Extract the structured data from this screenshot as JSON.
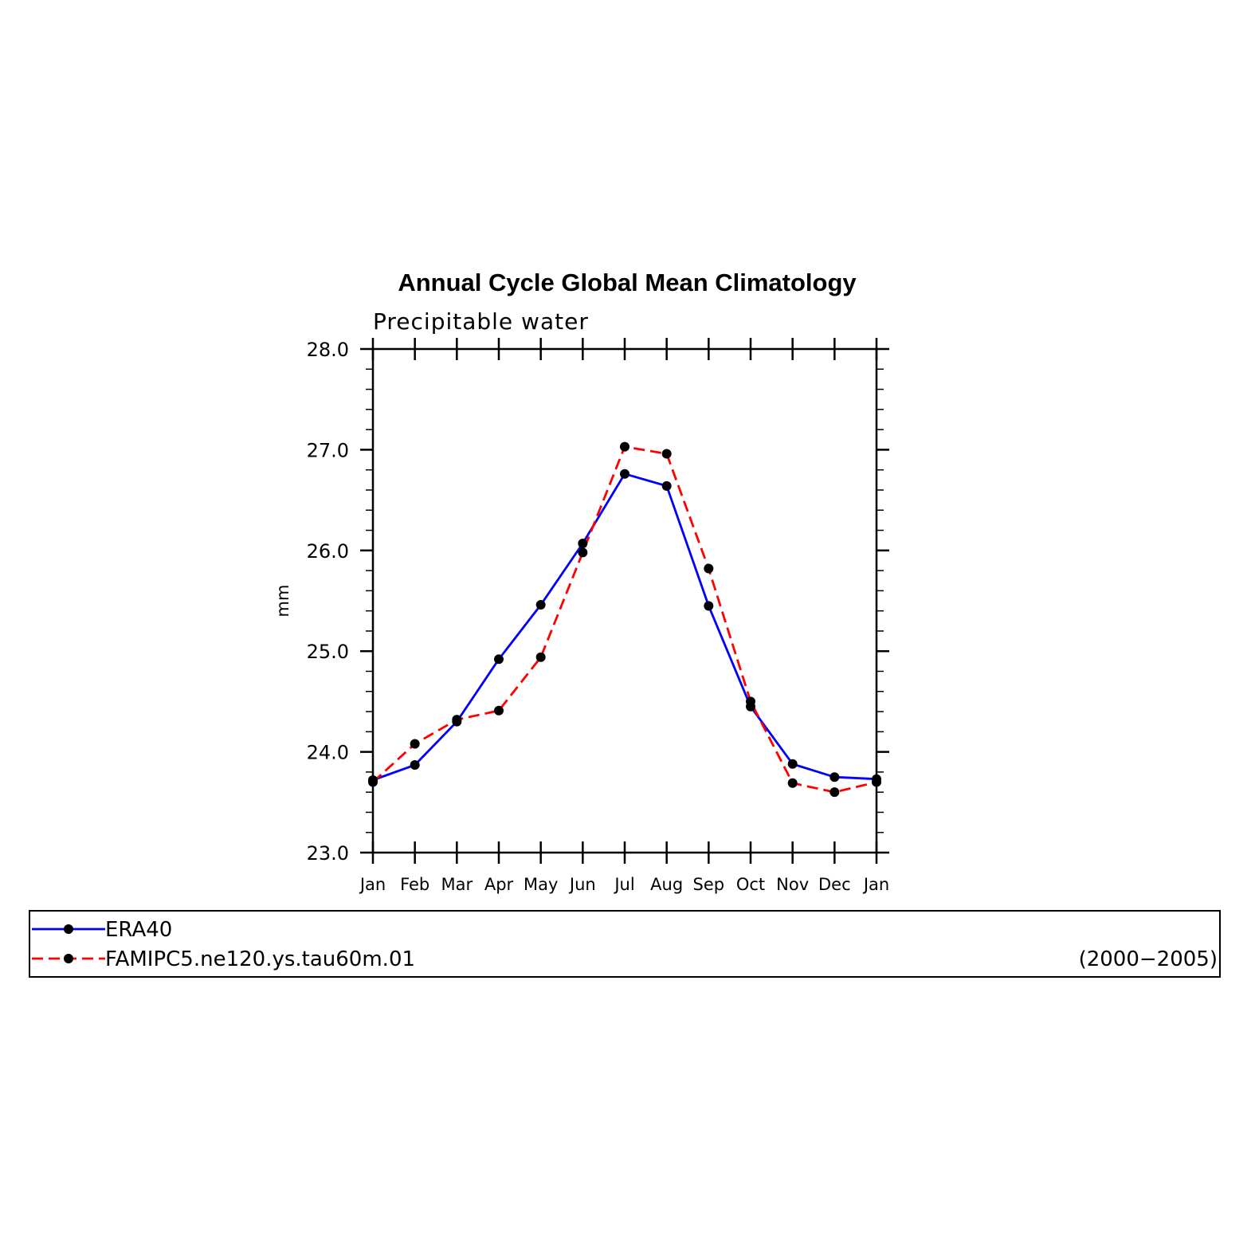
{
  "chart_data": {
    "type": "line",
    "title": "Annual Cycle Global Mean Climatology",
    "subtitle": "Precipitable water",
    "ylabel": "mm",
    "xlabel": "",
    "ylim": [
      23.0,
      28.0
    ],
    "yticks": [
      23.0,
      24.0,
      25.0,
      26.0,
      27.0,
      28.0
    ],
    "ytick_labels": [
      "23.0",
      "24.0",
      "25.0",
      "26.0",
      "27.0",
      "28.0"
    ],
    "categories": [
      "Jan",
      "Feb",
      "Mar",
      "Apr",
      "May",
      "Jun",
      "Jul",
      "Aug",
      "Sep",
      "Oct",
      "Nov",
      "Dec",
      "Jan"
    ],
    "grid": false,
    "legend_position": "bottom",
    "series": [
      {
        "name": "ERA40",
        "color": "#0000ff",
        "line_style": "solid",
        "values": [
          23.72,
          23.87,
          24.3,
          24.92,
          25.46,
          26.07,
          26.76,
          26.64,
          25.45,
          24.45,
          23.88,
          23.75,
          23.73
        ]
      },
      {
        "name": "FAMIPC5.ne120.ys.tau60m.01",
        "color": "#ff0000",
        "line_style": "dashed",
        "values": [
          23.7,
          24.08,
          24.32,
          24.41,
          24.94,
          25.98,
          27.03,
          26.96,
          25.82,
          24.5,
          23.69,
          23.6,
          23.7
        ]
      }
    ],
    "legend_note": "(2000−2005)"
  }
}
